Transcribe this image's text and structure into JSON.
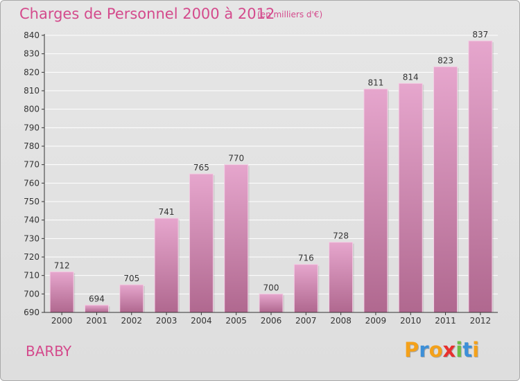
{
  "title": "Charges de Personnel 2000 à 2012",
  "subtitle": "(en milliers d'€)",
  "commune": "BARBY",
  "brand": {
    "letters": [
      "P",
      "r",
      "o",
      "x",
      "i",
      "t",
      "i"
    ],
    "colors": [
      "#f4a11a",
      "#3c8fd8",
      "#f4a11a",
      "#e8312f",
      "#6cbe45",
      "#3c8fd8",
      "#f4a11a"
    ]
  },
  "colors": {
    "accent": "#d44a8c",
    "bar_top": "#e6a6cd",
    "bar_bottom": "#b0688f",
    "grid": "#ffffff",
    "axis": "#333333"
  },
  "chart_data": {
    "type": "bar",
    "title": "Charges de Personnel 2000 à 2012",
    "subtitle": "(en milliers d'€)",
    "xlabel": "",
    "ylabel": "",
    "categories": [
      "2000",
      "2001",
      "2002",
      "2003",
      "2004",
      "2005",
      "2006",
      "2007",
      "2008",
      "2009",
      "2010",
      "2011",
      "2012"
    ],
    "values": [
      712,
      694,
      705,
      741,
      765,
      770,
      700,
      716,
      728,
      811,
      814,
      823,
      837
    ],
    "data_labels": [
      "712",
      "694",
      "705",
      "741",
      "765",
      "770",
      "700",
      "716",
      "728",
      "811",
      "814",
      "823",
      "837"
    ],
    "ylim": [
      690,
      840
    ],
    "yticks": [
      690,
      700,
      710,
      720,
      730,
      740,
      750,
      760,
      770,
      780,
      790,
      800,
      810,
      820,
      830,
      840
    ],
    "grid": true,
    "legend": "none"
  }
}
